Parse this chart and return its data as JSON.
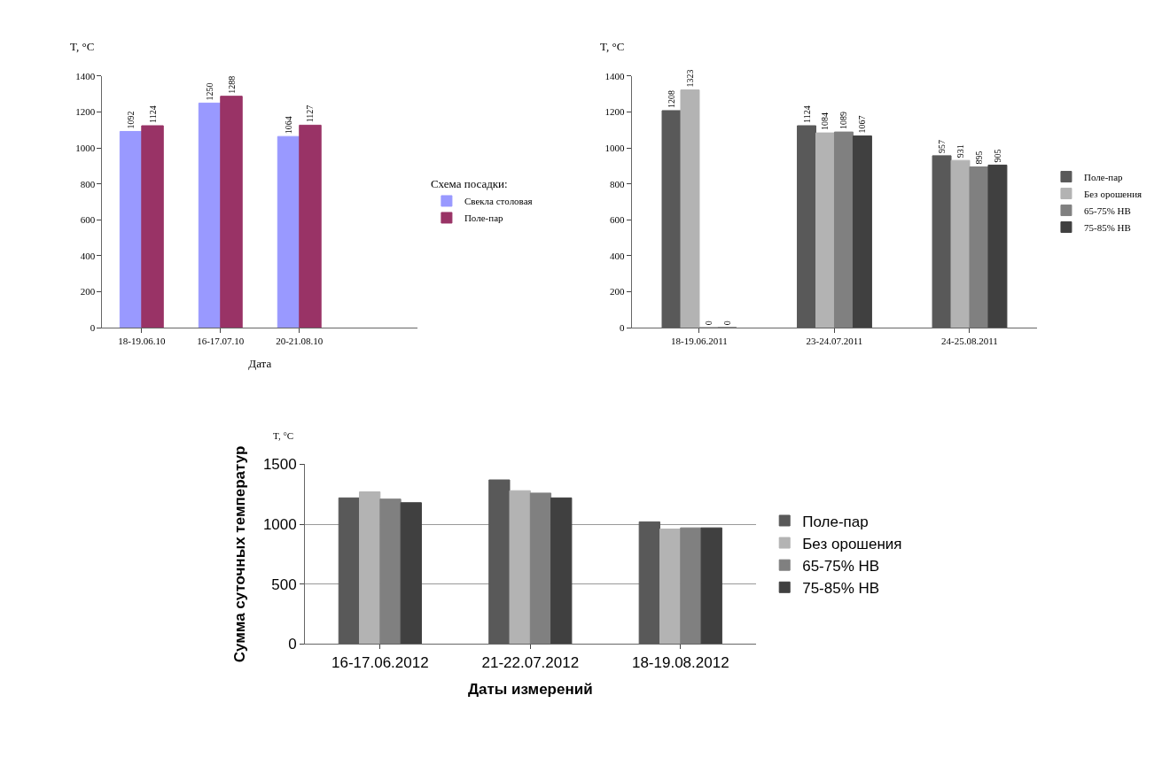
{
  "chart_data": [
    {
      "type": "bar",
      "annotations": [
        "T, °C"
      ],
      "xlabel": "Дата",
      "legend_title": "Схема посадки:",
      "categories": [
        "18-19.06.10",
        "16-17.07.10",
        "20-21.08.10",
        null
      ],
      "series": [
        {
          "name": "Свекла столовая",
          "color": "#9999ff",
          "values": [
            1092,
            1250,
            1064,
            null
          ]
        },
        {
          "name": "Поле-пар",
          "color": "#993366",
          "values": [
            1124,
            1288,
            1127,
            null
          ]
        }
      ],
      "ylim": [
        0,
        1400
      ],
      "yticks": [
        0,
        200,
        400,
        600,
        800,
        1000,
        1200,
        1400
      ],
      "data_labels": true,
      "legend": "right"
    },
    {
      "type": "bar",
      "annotations": [
        "T, °C"
      ],
      "categories": [
        "18-19.06.2011",
        "23-24.07.2011",
        "24-25.08.2011"
      ],
      "series": [
        {
          "name": "Поле-пар",
          "color": "#595959",
          "values": [
            1208,
            1124,
            957
          ]
        },
        {
          "name": "Без орошения",
          "color": "#b3b3b3",
          "values": [
            1323,
            1084,
            931
          ]
        },
        {
          "name": "65-75% НВ",
          "color": "#808080",
          "values": [
            0,
            1089,
            895
          ]
        },
        {
          "name": "75-85% НВ",
          "color": "#404040",
          "values": [
            0,
            1067,
            905
          ]
        }
      ],
      "ylim": [
        0,
        1400
      ],
      "yticks": [
        0,
        200,
        400,
        600,
        800,
        1000,
        1200,
        1400
      ],
      "data_labels": true,
      "legend": "right"
    },
    {
      "type": "bar",
      "annotations": [
        "T, °C"
      ],
      "ylabel": "Сумма суточных температур",
      "xlabel": "Даты измерений",
      "categories": [
        "16-17.06.2012",
        "21-22.07.2012",
        "18-19.08.2012"
      ],
      "series": [
        {
          "name": "Поле-пар",
          "color": "#595959",
          "values": [
            1220,
            1370,
            1020
          ]
        },
        {
          "name": "Без орошения",
          "color": "#b3b3b3",
          "values": [
            1270,
            1280,
            960
          ]
        },
        {
          "name": "65-75% НВ",
          "color": "#808080",
          "values": [
            1210,
            1260,
            970
          ]
        },
        {
          "name": "75-85% НВ",
          "color": "#404040",
          "values": [
            1180,
            1220,
            970
          ]
        }
      ],
      "ylim": [
        0,
        1500
      ],
      "yticks": [
        0,
        500,
        1000,
        1500
      ],
      "grid": "y",
      "legend": "right"
    }
  ]
}
